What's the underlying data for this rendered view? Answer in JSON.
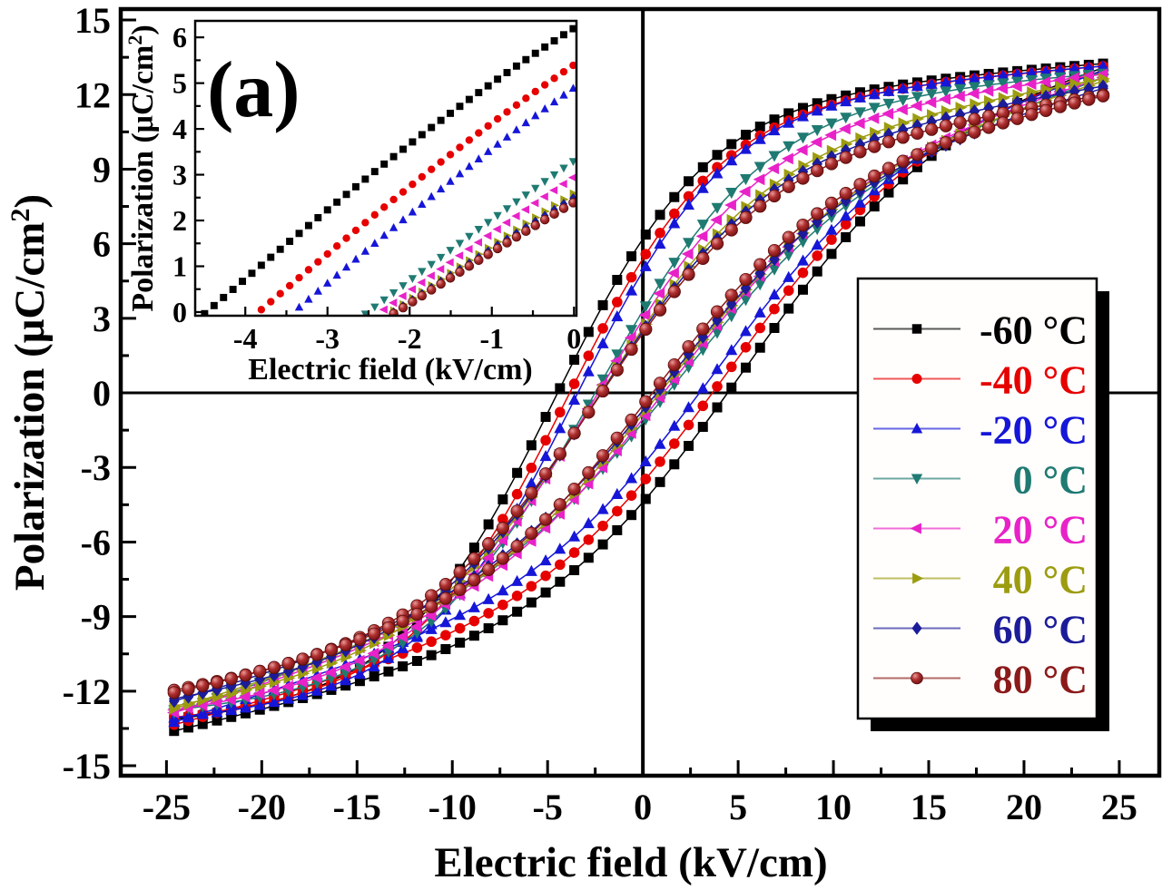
{
  "figure": {
    "background": "#ffffff",
    "description": "Polarization vs electric field (P-E) hysteresis loops at eight temperatures with inset (a) zoom of the negative-field zero-crossing region"
  },
  "chart_data": {
    "type": "line",
    "title": "",
    "xlabel": "Electric field (kV/cm)",
    "ylabel": "Polarization (μC/cm²)",
    "xlim": [
      -27.4,
      27.1
    ],
    "ylim": [
      -15.4,
      15.44
    ],
    "x_ticks": [
      -25,
      -20,
      -15,
      -10,
      -5,
      0,
      5,
      10,
      15,
      20,
      25
    ],
    "y_ticks": [
      15,
      12,
      9,
      6,
      3,
      0,
      -3,
      -6,
      -9,
      -12,
      -15
    ],
    "grid": false,
    "zero_axes_shown": true,
    "E_range": [
      -24.6,
      24.6
    ],
    "sampling": {
      "marker_step_main_kV": 0.75,
      "marker_step_inset_kV": 0.115
    },
    "legend": {
      "position": "inside right",
      "shadow": true
    },
    "series": [
      {
        "label": "-60 °C",
        "color": "#000000",
        "marker": "square",
        "loop": {
          "P_max": 13.3,
          "P_min": -13.5,
          "upper": {
            "Pr": 6.2,
            "Ec": -4.65,
            "w": 8
          },
          "lower": {
            "Pr": -4.4,
            "Ec": 5.3,
            "w": 10.5
          }
        }
      },
      {
        "label": "-40 °C",
        "color": "#e60000",
        "marker": "circle",
        "loop": {
          "P_max": 13.2,
          "P_min": -13.4,
          "upper": {
            "Pr": 5.4,
            "Ec": -4.0,
            "w": 8
          },
          "lower": {
            "Pr": -3.6,
            "Ec": 4.5,
            "w": 10
          }
        }
      },
      {
        "label": "-20 °C",
        "color": "#1616d8",
        "marker": "triangle-up",
        "loop": {
          "P_max": 13.2,
          "P_min": -13.3,
          "upper": {
            "Pr": 4.9,
            "Ec": -3.55,
            "w": 8
          },
          "lower": {
            "Pr": -2.9,
            "Ec": 3.85,
            "w": 9.5
          }
        }
      },
      {
        "label": "0 °C",
        "color": "#1f7a72",
        "marker": "triangle-down",
        "loop": {
          "P_max": 12.9,
          "P_min": -12.9,
          "upper": {
            "Pr": 3.3,
            "Ec": -2.6,
            "w": 9
          },
          "lower": {
            "Pr": -1.2,
            "Ec": 1.75,
            "w": 10
          }
        }
      },
      {
        "label": "20 °C",
        "color": "#e822c8",
        "marker": "triangle-left",
        "loop": {
          "P_max": 12.9,
          "P_min": -12.8,
          "upper": {
            "Pr": 2.95,
            "Ec": -2.52,
            "w": 9
          },
          "lower": {
            "Pr": -1.05,
            "Ec": 1.4,
            "w": 10
          }
        }
      },
      {
        "label": "40 °C",
        "color": "#9c9c10",
        "marker": "triangle-right",
        "loop": {
          "P_max": 12.75,
          "P_min": -12.5,
          "upper": {
            "Pr": 2.6,
            "Ec": -2.48,
            "w": 9
          },
          "lower": {
            "Pr": -0.85,
            "Ec": 1.15,
            "w": 10
          }
        }
      },
      {
        "label": "60 °C",
        "color": "#1c1c9a",
        "marker": "diamond",
        "loop": {
          "P_max": 12.45,
          "P_min": -12.1,
          "upper": {
            "Pr": 2.5,
            "Ec": -2.45,
            "w": 9
          },
          "lower": {
            "Pr": -0.7,
            "Ec": 0.95,
            "w": 10
          }
        }
      },
      {
        "label": "80 °C",
        "color": "#8b1a1a",
        "marker": "sphere",
        "loop": {
          "P_max": 12.1,
          "P_min": -11.7,
          "upper": {
            "Pr": 2.4,
            "Ec": -2.42,
            "w": 9
          },
          "lower": {
            "Pr": -0.5,
            "Ec": 0.6,
            "w": 10
          }
        }
      }
    ],
    "inset": {
      "panel_label": "(a)",
      "xlabel": "Electric field (kV/cm)",
      "ylabel": "Polarization (μC/cm²)",
      "xlim": [
        -4.61,
        0.03
      ],
      "ylim": [
        -0.08,
        6.36
      ],
      "x_ticks": [
        -4,
        -3,
        -2,
        -1,
        0
      ],
      "y_ticks": [
        0,
        1,
        2,
        3,
        4,
        5,
        6
      ],
      "shows": "upper (descending) branch of each loop between its negative coercive field and E = 0"
    }
  }
}
